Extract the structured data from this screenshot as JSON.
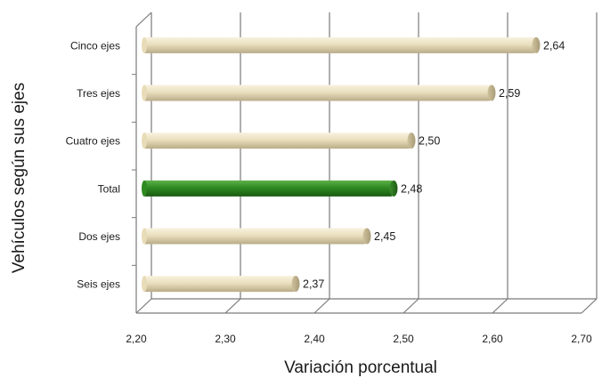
{
  "chart_data": {
    "type": "bar",
    "orientation": "horizontal",
    "categories": [
      "Cinco ejes",
      "Tres ejes",
      "Cuatro ejes",
      "Total",
      "Dos ejes",
      "Seis ejes"
    ],
    "values": [
      2.64,
      2.59,
      2.5,
      2.48,
      2.45,
      2.37
    ],
    "value_labels": [
      "2,64",
      "2,59",
      "2,50",
      "2,48",
      "2,45",
      "2,37"
    ],
    "highlight_category": "Total",
    "xlabel": "Variación porcentual",
    "ylabel": "Vehículos según sus ejes",
    "xlim": [
      2.2,
      2.7
    ],
    "xticks": [
      2.2,
      2.3,
      2.4,
      2.5,
      2.6,
      2.7
    ],
    "xtick_labels": [
      "2,20",
      "2,30",
      "2,40",
      "2,50",
      "2,60",
      "2,70"
    ],
    "grid": true,
    "legend": "none",
    "colors": {
      "bar": "#ede2c2",
      "bar_highlight": "#2f8a22",
      "grid": "#7a7a7a"
    }
  }
}
